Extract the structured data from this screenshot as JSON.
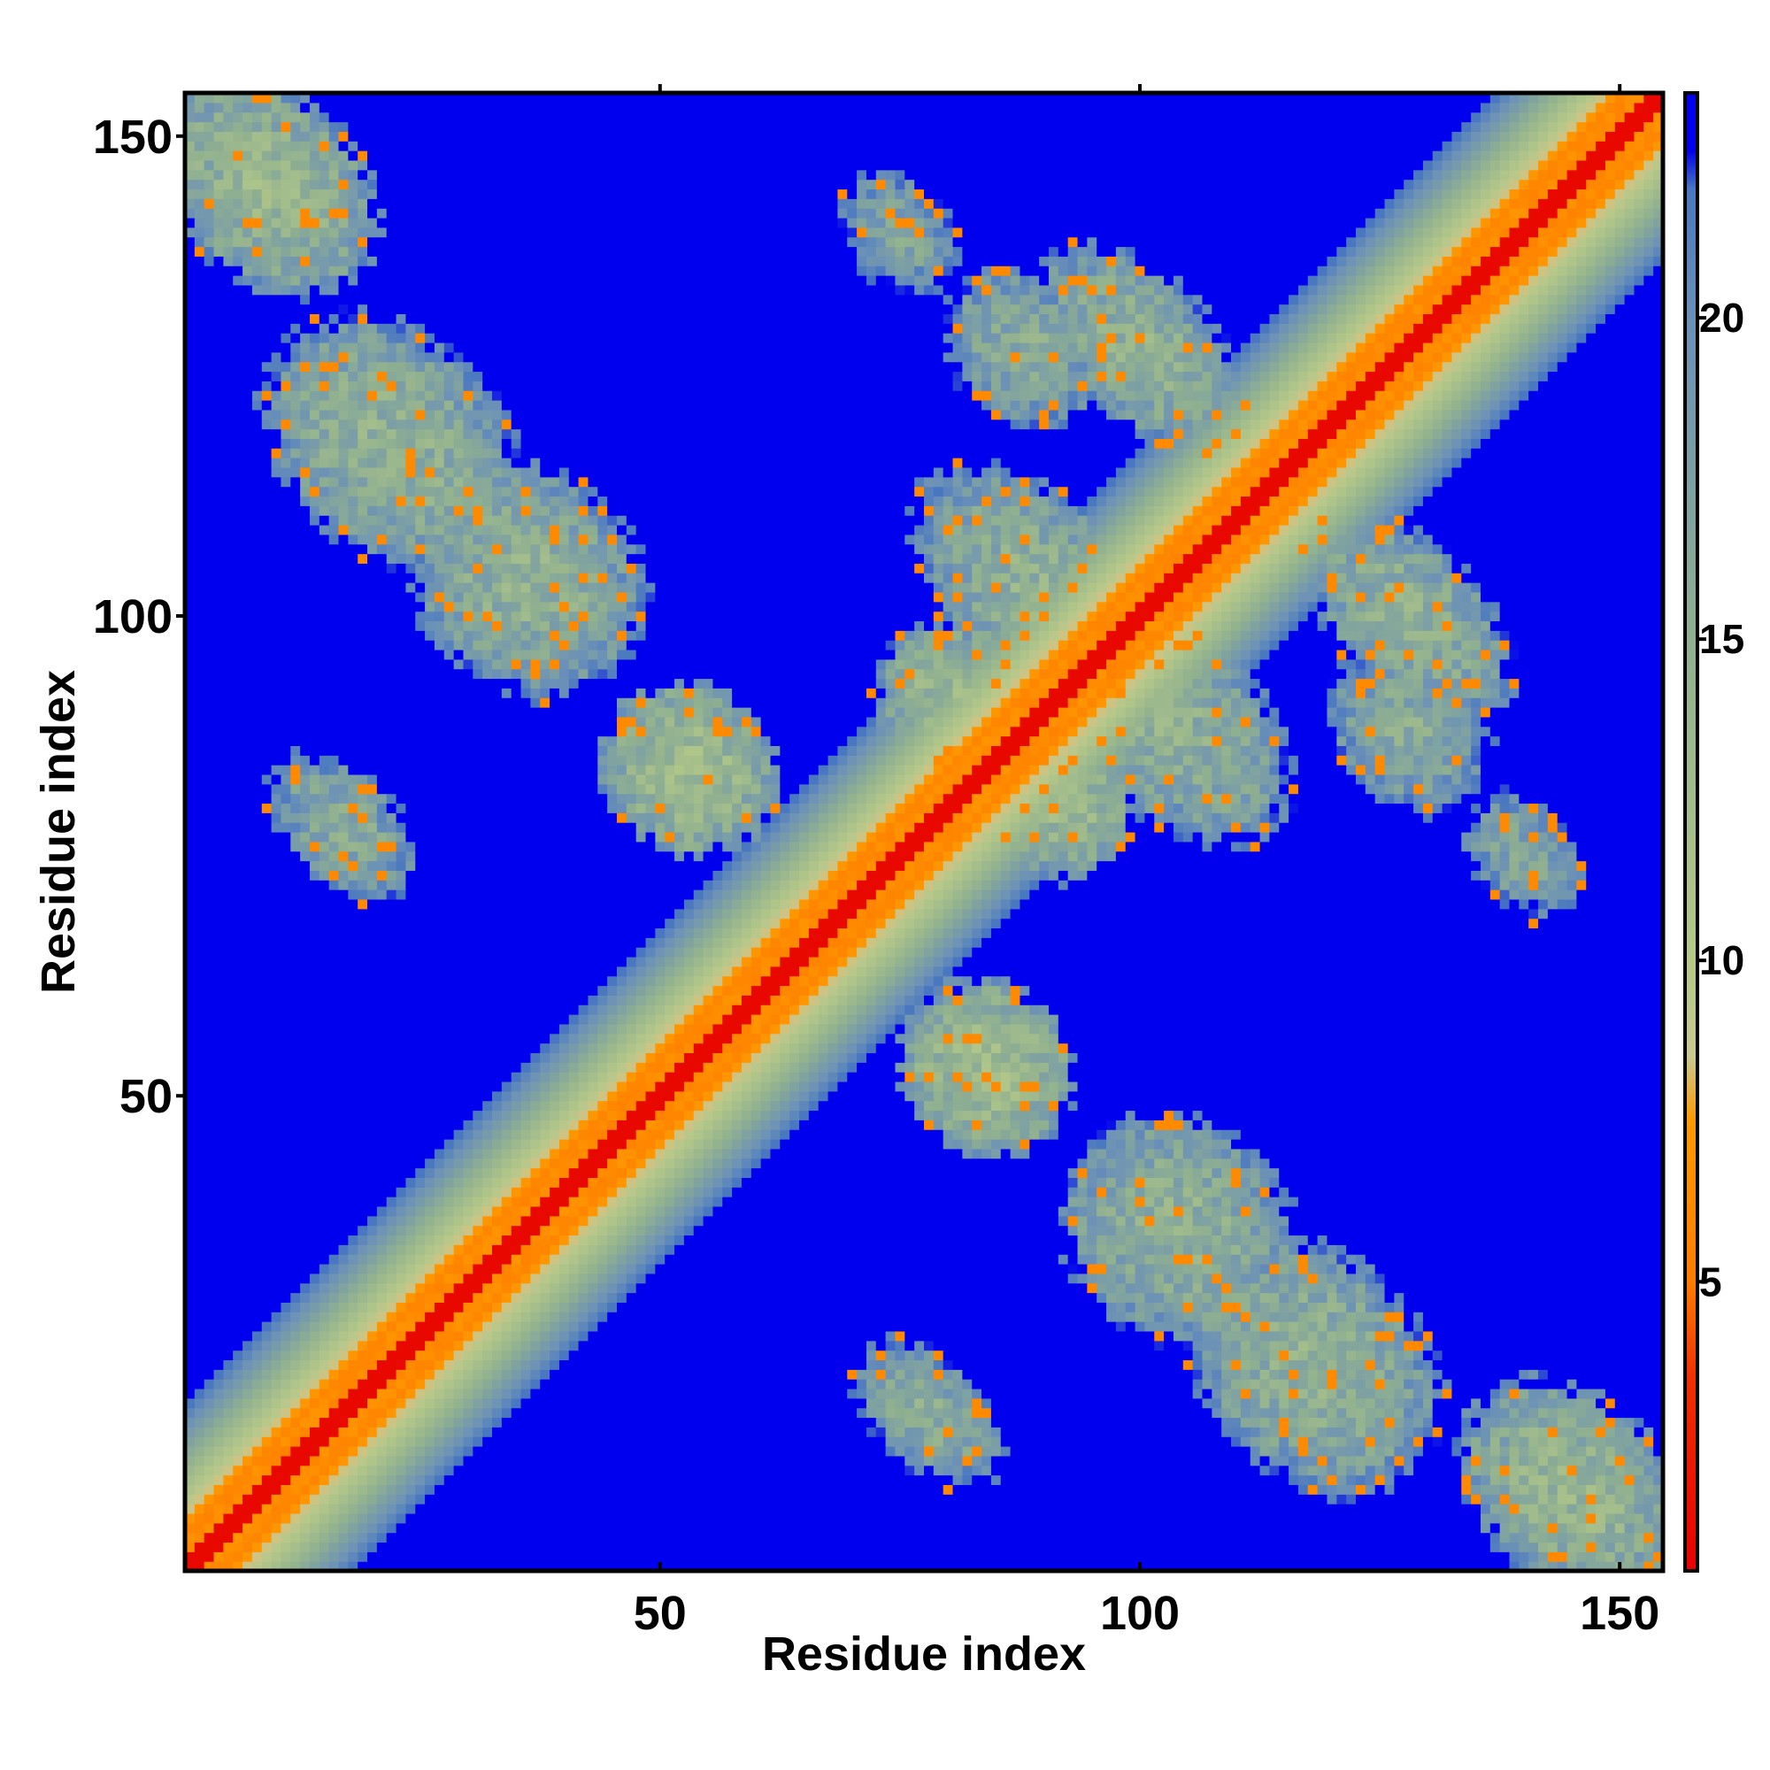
{
  "chart_data": {
    "type": "heatmap",
    "title": "",
    "xlabel": "Residue index",
    "ylabel": "Residue index",
    "n_residues": 154,
    "xlim": [
      1,
      154
    ],
    "ylim": [
      1,
      154
    ],
    "x_ticks": [
      50,
      100,
      150
    ],
    "y_ticks": [
      50,
      100,
      150
    ],
    "colorbar": {
      "range": [
        0.5,
        23.5
      ],
      "ticks": [
        5,
        10,
        15,
        20
      ],
      "stops": [
        {
          "value": 0.5,
          "color": "#e80000"
        },
        {
          "value": 3.5,
          "color": "#f03000"
        },
        {
          "value": 5.0,
          "color": "#ff7c00"
        },
        {
          "value": 7.5,
          "color": "#ff9a00"
        },
        {
          "value": 8.5,
          "color": "#c8c890"
        },
        {
          "value": 10.0,
          "color": "#b4c888"
        },
        {
          "value": 15.0,
          "color": "#90b090"
        },
        {
          "value": 20.0,
          "color": "#6a90b8"
        },
        {
          "value": 22.0,
          "color": "#4a78c0"
        },
        {
          "value": 22.6,
          "color": "#0000ee"
        },
        {
          "value": 23.5,
          "color": "#0000ee"
        }
      ]
    },
    "background_value": 23.5,
    "matrix_description": "symmetric residue-residue distance map; values capped at 23.5",
    "diagonal_band": {
      "halfwidth": 17,
      "min_value": 1.0,
      "max_value": 22.0
    },
    "contact_regions": [
      {
        "center": [
          9,
          145
        ],
        "r_along": 14,
        "r_perp": 10,
        "value": 14
      },
      {
        "center": [
          22,
          118
        ],
        "r_along": 16,
        "r_perp": 12,
        "value": 15
      },
      {
        "center": [
          36,
          104
        ],
        "r_along": 14,
        "r_perp": 12,
        "value": 15
      },
      {
        "center": [
          53,
          84
        ],
        "r_along": 10,
        "r_perp": 9,
        "value": 13
      },
      {
        "center": [
          17,
          78
        ],
        "r_along": 10,
        "r_perp": 6,
        "value": 16
      },
      {
        "center": [
          90,
          102
        ],
        "r_along": 18,
        "r_perp": 10,
        "value": 15
      },
      {
        "center": [
          80,
          92
        ],
        "r_along": 8,
        "r_perp": 8,
        "value": 14
      },
      {
        "center": [
          100,
          128
        ],
        "r_along": 14,
        "r_perp": 8,
        "value": 15
      },
      {
        "center": [
          128,
          88
        ],
        "r_along": 10,
        "r_perp": 8,
        "value": 16
      },
      {
        "center": [
          140,
          75
        ],
        "r_along": 8,
        "r_perp": 6,
        "value": 17
      }
    ]
  }
}
